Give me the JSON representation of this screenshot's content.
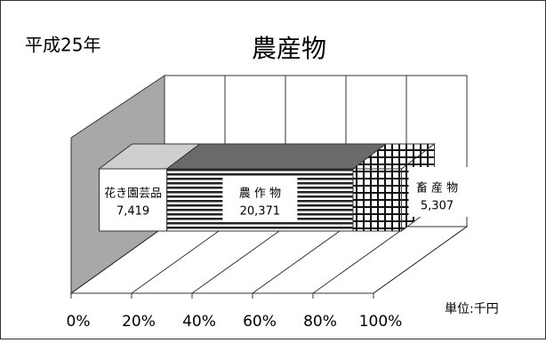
{
  "chart_data": {
    "type": "bar",
    "stacked": "percent",
    "title": "農産物",
    "annotations": [
      "平成25年",
      "単位:千円"
    ],
    "series": [
      {
        "name": "花き園芸品",
        "color": "#cfcfcf",
        "pattern": "none",
        "values": [
          7419
        ],
        "value_labels": [
          "7,419"
        ]
      },
      {
        "name": "農 作 物",
        "color": "#6a6a6a",
        "pattern": "horizontal",
        "values": [
          20371
        ],
        "value_labels": [
          "20,371"
        ]
      },
      {
        "name": "畜 産 物",
        "color": "#ffffff",
        "pattern": "grid",
        "values": [
          5307
        ],
        "value_labels": [
          "5,307"
        ]
      }
    ],
    "xlim": [
      0,
      100
    ],
    "xticks": [
      {
        "value": 0,
        "label": "0%"
      },
      {
        "value": 20,
        "label": "20%"
      },
      {
        "value": 40,
        "label": "40%"
      },
      {
        "value": 60,
        "label": "60%"
      },
      {
        "value": 80,
        "label": "80%"
      },
      {
        "value": 100,
        "label": "100%"
      }
    ],
    "grid": true
  }
}
